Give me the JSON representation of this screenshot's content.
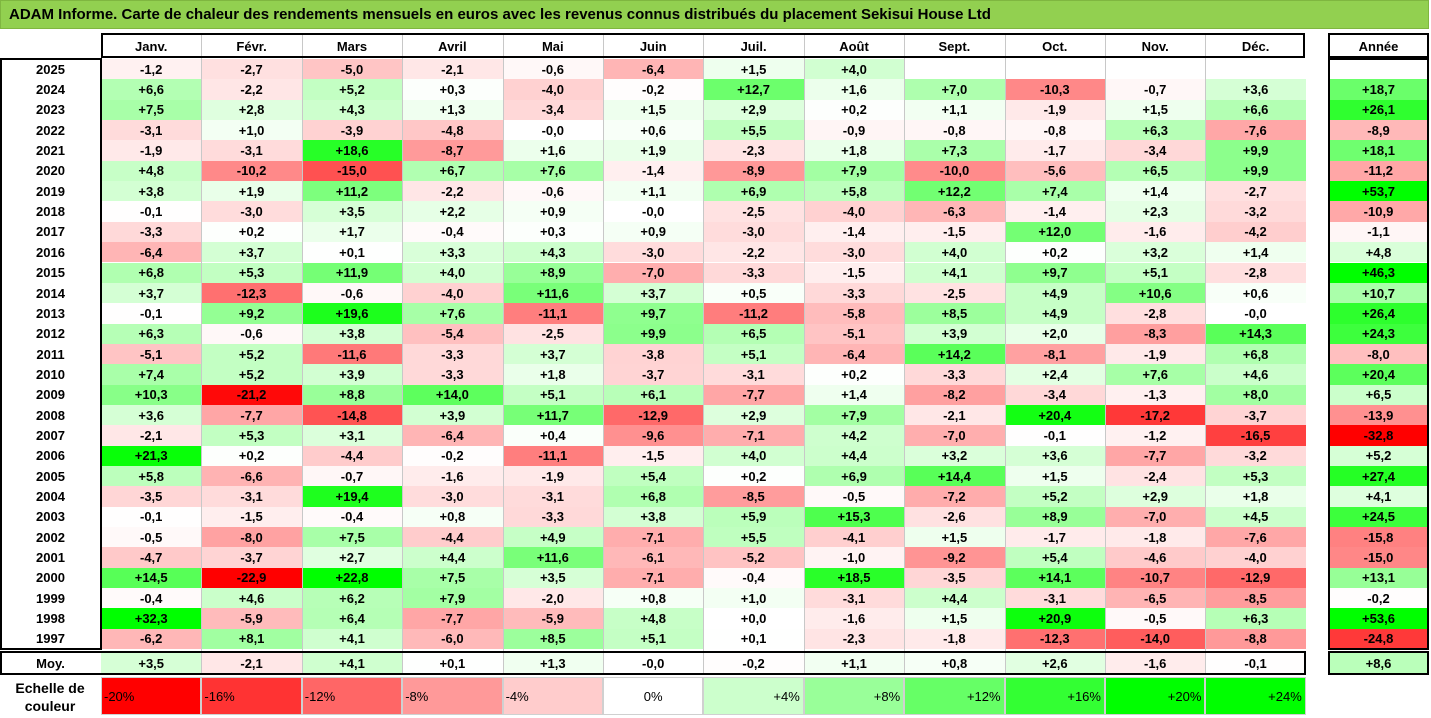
{
  "title": "ADAM Informe. Carte de chaleur des rendements mensuels en euros avec les revenus connus distribués du placement Sekisui House Ltd",
  "chart_data": {
    "type": "heatmap",
    "title": "ADAM Informe. Carte de chaleur des rendements mensuels en euros avec les revenus connus distribués du placement Sekisui House Ltd",
    "columns": [
      "Janv.",
      "Févr.",
      "Mars",
      "Avril",
      "Mai",
      "Juin",
      "Juil.",
      "Août",
      "Sept.",
      "Oct.",
      "Nov.",
      "Déc."
    ],
    "year_column_label": "Année",
    "average_row_label": "Moy.",
    "rows": [
      {
        "year": "2025",
        "values": [
          "-1,2",
          "-2,7",
          "-5,0",
          "-2,1",
          "-0,6",
          "-6,4",
          "+1,5",
          "+4,0",
          "",
          "",
          "",
          ""
        ],
        "annual": ""
      },
      {
        "year": "2024",
        "values": [
          "+6,6",
          "-2,2",
          "+5,2",
          "+0,3",
          "-4,0",
          "-0,2",
          "+12,7",
          "+1,6",
          "+7,0",
          "-10,3",
          "-0,7",
          "+3,6"
        ],
        "annual": "+18,7"
      },
      {
        "year": "2023",
        "values": [
          "+7,5",
          "+2,8",
          "+4,3",
          "+1,3",
          "-3,4",
          "+1,5",
          "+2,9",
          "+0,2",
          "+1,1",
          "-1,9",
          "+1,5",
          "+6,6"
        ],
        "annual": "+26,1"
      },
      {
        "year": "2022",
        "values": [
          "-3,1",
          "+1,0",
          "-3,9",
          "-4,8",
          "-0,0",
          "+0,6",
          "+5,5",
          "-0,9",
          "-0,8",
          "-0,8",
          "+6,3",
          "-7,6"
        ],
        "annual": "-8,9"
      },
      {
        "year": "2021",
        "values": [
          "-1,9",
          "-3,1",
          "+18,6",
          "-8,7",
          "+1,6",
          "+1,9",
          "-2,3",
          "+1,8",
          "+7,3",
          "-1,7",
          "-3,4",
          "+9,9"
        ],
        "annual": "+18,1"
      },
      {
        "year": "2020",
        "values": [
          "+4,8",
          "-10,2",
          "-15,0",
          "+6,7",
          "+7,6",
          "-1,4",
          "-8,9",
          "+7,9",
          "-10,0",
          "-5,6",
          "+6,5",
          "+9,9"
        ],
        "annual": "-11,2"
      },
      {
        "year": "2019",
        "values": [
          "+3,8",
          "+1,9",
          "+11,2",
          "-2,2",
          "-0,6",
          "+1,1",
          "+6,9",
          "+5,8",
          "+12,2",
          "+7,4",
          "+1,4",
          "-2,7"
        ],
        "annual": "+53,7"
      },
      {
        "year": "2018",
        "values": [
          "-0,1",
          "-3,0",
          "+3,5",
          "+2,2",
          "+0,9",
          "-0,0",
          "-2,5",
          "-4,0",
          "-6,3",
          "-1,4",
          "+2,3",
          "-3,2"
        ],
        "annual": "-10,9"
      },
      {
        "year": "2017",
        "values": [
          "-3,3",
          "+0,2",
          "+1,7",
          "-0,4",
          "+0,3",
          "+0,9",
          "-3,0",
          "-1,4",
          "-1,5",
          "+12,0",
          "-1,6",
          "-4,2"
        ],
        "annual": "-1,1"
      },
      {
        "year": "2016",
        "values": [
          "-6,4",
          "+3,7",
          "+0,1",
          "+3,3",
          "+4,3",
          "-3,0",
          "-2,2",
          "-3,0",
          "+4,0",
          "+0,2",
          "+3,2",
          "+1,4"
        ],
        "annual": "+4,8"
      },
      {
        "year": "2015",
        "values": [
          "+6,8",
          "+5,3",
          "+11,9",
          "+4,0",
          "+8,9",
          "-7,0",
          "-3,3",
          "-1,5",
          "+4,1",
          "+9,7",
          "+5,1",
          "-2,8"
        ],
        "annual": "+46,3"
      },
      {
        "year": "2014",
        "values": [
          "+3,7",
          "-12,3",
          "-0,6",
          "-4,0",
          "+11,6",
          "+3,7",
          "+0,5",
          "-3,3",
          "-2,5",
          "+4,9",
          "+10,6",
          "+0,6"
        ],
        "annual": "+10,7"
      },
      {
        "year": "2013",
        "values": [
          "-0,1",
          "+9,2",
          "+19,6",
          "+7,6",
          "-11,1",
          "+9,7",
          "-11,2",
          "-5,8",
          "+8,5",
          "+4,9",
          "-2,8",
          "-0,0"
        ],
        "annual": "+26,4"
      },
      {
        "year": "2012",
        "values": [
          "+6,3",
          "-0,6",
          "+3,8",
          "-5,4",
          "-2,5",
          "+9,9",
          "+6,5",
          "-5,1",
          "+3,9",
          "+2,0",
          "-8,3",
          "+14,3"
        ],
        "annual": "+24,3"
      },
      {
        "year": "2011",
        "values": [
          "-5,1",
          "+5,2",
          "-11,6",
          "-3,3",
          "+3,7",
          "-3,8",
          "+5,1",
          "-6,4",
          "+14,2",
          "-8,1",
          "-1,9",
          "+6,8"
        ],
        "annual": "-8,0"
      },
      {
        "year": "2010",
        "values": [
          "+7,4",
          "+5,2",
          "+3,9",
          "-3,3",
          "+1,8",
          "-3,7",
          "-3,1",
          "+0,2",
          "-3,3",
          "+2,4",
          "+7,6",
          "+4,6"
        ],
        "annual": "+20,4"
      },
      {
        "year": "2009",
        "values": [
          "+10,3",
          "-21,2",
          "+8,8",
          "+14,0",
          "+5,1",
          "+6,1",
          "-7,7",
          "+1,4",
          "-8,2",
          "-3,4",
          "-1,3",
          "+8,0"
        ],
        "annual": "+6,5"
      },
      {
        "year": "2008",
        "values": [
          "+3,6",
          "-7,7",
          "-14,8",
          "+3,9",
          "+11,7",
          "-12,9",
          "+2,9",
          "+7,9",
          "-2,1",
          "+20,4",
          "-17,2",
          "-3,7"
        ],
        "annual": "-13,9"
      },
      {
        "year": "2007",
        "values": [
          "-2,1",
          "+5,3",
          "+3,1",
          "-6,4",
          "+0,4",
          "-9,6",
          "-7,1",
          "+4,2",
          "-7,0",
          "-0,1",
          "-1,2",
          "-16,5"
        ],
        "annual": "-32,8"
      },
      {
        "year": "2006",
        "values": [
          "+21,3",
          "+0,2",
          "-4,4",
          "-0,2",
          "-11,1",
          "-1,5",
          "+4,0",
          "+4,4",
          "+3,2",
          "+3,6",
          "-7,7",
          "-3,2"
        ],
        "annual": "+5,2"
      },
      {
        "year": "2005",
        "values": [
          "+5,8",
          "-6,6",
          "-0,7",
          "-1,6",
          "-1,9",
          "+5,4",
          "+0,2",
          "+6,9",
          "+14,4",
          "+1,5",
          "-2,4",
          "+5,3"
        ],
        "annual": "+27,4"
      },
      {
        "year": "2004",
        "values": [
          "-3,5",
          "-3,1",
          "+19,4",
          "-3,0",
          "-3,1",
          "+6,8",
          "-8,5",
          "-0,5",
          "-7,2",
          "+5,2",
          "+2,9",
          "+1,8"
        ],
        "annual": "+4,1"
      },
      {
        "year": "2003",
        "values": [
          "-0,1",
          "-1,5",
          "-0,4",
          "+0,8",
          "-3,3",
          "+3,8",
          "+5,9",
          "+15,3",
          "-2,6",
          "+8,9",
          "-7,0",
          "+4,5"
        ],
        "annual": "+24,5"
      },
      {
        "year": "2002",
        "values": [
          "-0,5",
          "-8,0",
          "+7,5",
          "-4,4",
          "+4,9",
          "-7,1",
          "+5,5",
          "-4,1",
          "+1,5",
          "-1,7",
          "-1,8",
          "-7,6"
        ],
        "annual": "-15,8"
      },
      {
        "year": "2001",
        "values": [
          "-4,7",
          "-3,7",
          "+2,7",
          "+4,4",
          "+11,6",
          "-6,1",
          "-5,2",
          "-1,0",
          "-9,2",
          "+5,4",
          "-4,6",
          "-4,0"
        ],
        "annual": "-15,0"
      },
      {
        "year": "2000",
        "values": [
          "+14,5",
          "-22,9",
          "+22,8",
          "+7,5",
          "+3,5",
          "-7,1",
          "-0,4",
          "+18,5",
          "-3,5",
          "+14,1",
          "-10,7",
          "-12,9"
        ],
        "annual": "+13,1"
      },
      {
        "year": "1999",
        "values": [
          "-0,4",
          "+4,6",
          "+6,2",
          "+7,9",
          "-2,0",
          "+0,8",
          "+1,0",
          "-3,1",
          "+4,4",
          "-3,1",
          "-6,5",
          "-8,5"
        ],
        "annual": "-0,2"
      },
      {
        "year": "1998",
        "values": [
          "+32,3",
          "-5,9",
          "+6,4",
          "-7,7",
          "-5,9",
          "+4,8",
          "+0,0",
          "-1,6",
          "+1,5",
          "+20,9",
          "-0,5",
          "+6,3"
        ],
        "annual": "+53,6"
      },
      {
        "year": "1997",
        "values": [
          "-6,2",
          "+8,1",
          "+4,1",
          "-6,0",
          "+8,5",
          "+5,1",
          "+0,1",
          "-2,3",
          "-1,8",
          "-12,3",
          "-14,0",
          "-8,8"
        ],
        "annual": "-24,8"
      }
    ],
    "average": {
      "values": [
        "+3,5",
        "-2,1",
        "+4,1",
        "+0,1",
        "+1,3",
        "-0,0",
        "-0,2",
        "+1,1",
        "+0,8",
        "+2,6",
        "-1,6",
        "-0,1"
      ],
      "annual": "+8,6"
    },
    "legend": {
      "label": "Echelle de couleur",
      "items": [
        {
          "label": "-20%",
          "color": "#ff0000"
        },
        {
          "label": "-16%",
          "color": "#ff3333"
        },
        {
          "label": "-12%",
          "color": "#ff6666"
        },
        {
          "label": "-8%",
          "color": "#ff9999"
        },
        {
          "label": "-4%",
          "color": "#ffcccc"
        },
        {
          "label": "0%",
          "color": "#ffffff"
        },
        {
          "label": "+4%",
          "color": "#ccffcc"
        },
        {
          "label": "+8%",
          "color": "#99ff99"
        },
        {
          "label": "+12%",
          "color": "#66ff66"
        },
        {
          "label": "+16%",
          "color": "#33ff33"
        },
        {
          "label": "+20%",
          "color": "#00ff00"
        },
        {
          "label": "+24%",
          "color": "#00ff00"
        }
      ]
    },
    "colors": {
      "negative_max": "#ff0000",
      "neutral": "#ffffff",
      "positive_max": "#00ff00",
      "title_bar": "#92d050"
    }
  }
}
